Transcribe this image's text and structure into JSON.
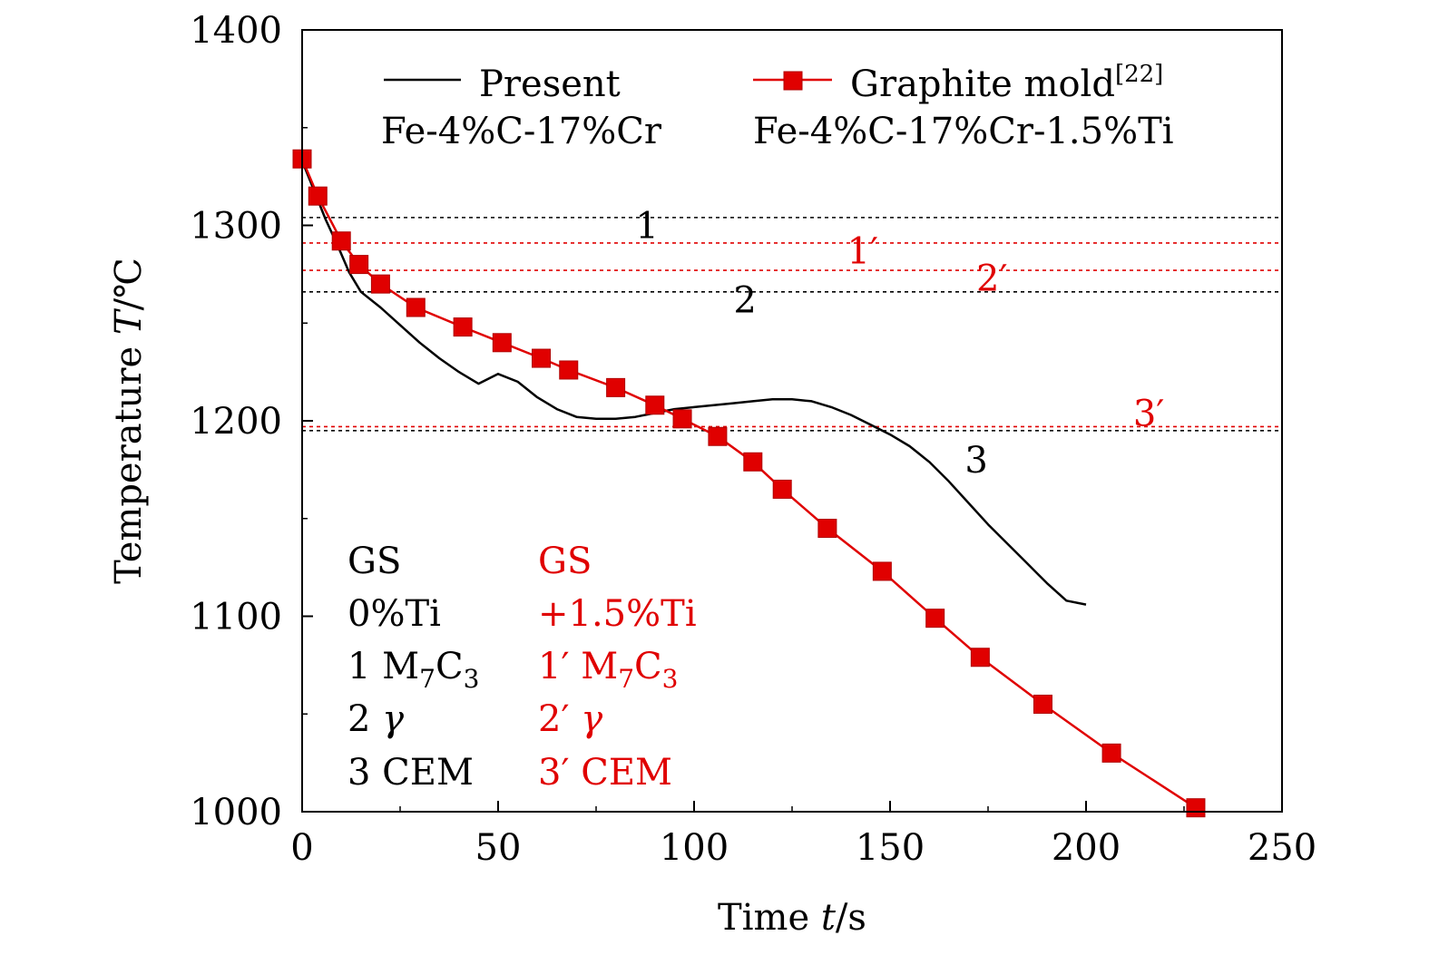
{
  "chart_data": {
    "type": "line",
    "xlabel": "Time t/s",
    "ylabel": "Temperature T/℃",
    "xlim": [
      0,
      250
    ],
    "ylim": [
      1000,
      1400
    ],
    "xticks": [
      "0",
      "50",
      "100",
      "150",
      "200",
      "250"
    ],
    "yticks": [
      "1000",
      "1100",
      "1200",
      "1300",
      "1400"
    ],
    "legend_position": "top",
    "series": [
      {
        "name": "Present",
        "subtitle": "Fe-4%C-17%Cr",
        "color": "#000000",
        "marker": "none",
        "x": [
          0,
          3,
          6,
          9,
          12,
          15,
          20,
          25,
          30,
          35,
          40,
          45,
          50,
          55,
          60,
          65,
          70,
          75,
          80,
          85,
          90,
          95,
          100,
          105,
          110,
          115,
          120,
          125,
          130,
          135,
          140,
          145,
          150,
          155,
          160,
          165,
          170,
          175,
          180,
          185,
          190,
          195,
          200
        ],
        "y": [
          1333,
          1318,
          1303,
          1290,
          1276,
          1266,
          1258,
          1249,
          1240,
          1232,
          1225,
          1219,
          1224,
          1220,
          1212,
          1206,
          1202,
          1201,
          1201,
          1202,
          1204,
          1206,
          1207,
          1208,
          1209,
          1210,
          1211,
          1211,
          1210,
          1207,
          1203,
          1198,
          1193,
          1187,
          1179,
          1169,
          1158,
          1147,
          1137,
          1127,
          1117,
          1108,
          1106
        ]
      },
      {
        "name": "Graphite mold",
        "name_ref": "[22]",
        "subtitle": "Fe-4%C-17%Cr-1.5%Ti",
        "color": "#e00000",
        "marker": "square",
        "x": [
          0,
          4,
          10,
          14.5,
          20,
          29,
          41,
          51,
          61,
          68,
          80,
          90,
          97,
          106,
          115,
          122.5,
          134,
          148,
          161.5,
          173,
          189,
          206.5,
          228
        ],
        "y": [
          1334,
          1315,
          1292,
          1280,
          1270,
          1258,
          1248,
          1240,
          1232,
          1226,
          1217,
          1208,
          1201,
          1192,
          1179,
          1165,
          1145,
          1123,
          1099,
          1079,
          1055,
          1030,
          1002
        ]
      }
    ],
    "reference_lines": [
      {
        "label": "1",
        "y": 1304,
        "color": "#000000",
        "label_x": 88,
        "label_y": 1300
      },
      {
        "label": "1′",
        "y": 1291,
        "color": "#e00000",
        "label_x": 143,
        "label_y": 1287
      },
      {
        "label": "2′",
        "y": 1277,
        "color": "#e00000",
        "label_x": 176,
        "label_y": 1273
      },
      {
        "label": "2",
        "y": 1266,
        "color": "#000000",
        "label_x": 113,
        "label_y": 1262
      },
      {
        "label": "3′",
        "y": 1197,
        "color": "#e00000",
        "label_x": 216,
        "label_y": 1204
      },
      {
        "label": "3",
        "y": 1195,
        "color": "#000000",
        "label_x": 172,
        "label_y": 1180
      }
    ],
    "annotations": {
      "black": [
        "GS",
        "0%Ti",
        "1 M7C3",
        "2 γ",
        "3 CEM"
      ],
      "red": [
        "GS",
        "+1.5%Ti",
        "1′ M7C3",
        "2′ γ",
        "3′ CEM"
      ]
    }
  }
}
